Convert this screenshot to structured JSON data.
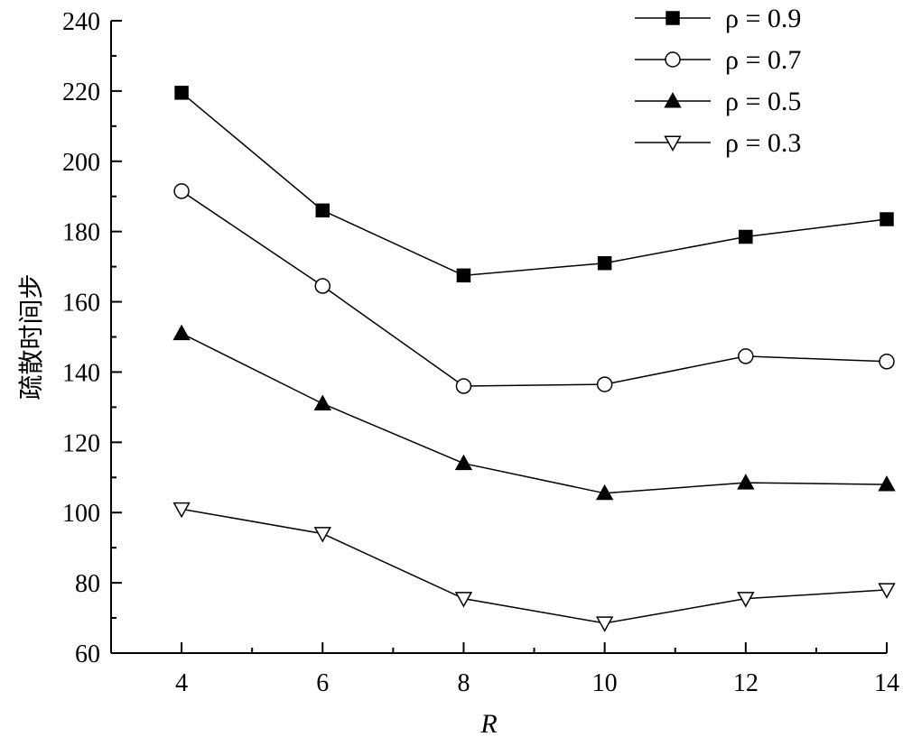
{
  "chart_data": {
    "type": "line",
    "xlabel": "R",
    "ylabel": "疏散时间步",
    "x": [
      4,
      6,
      8,
      10,
      12,
      14
    ],
    "xlim": [
      3,
      14
    ],
    "ylim": [
      60,
      240
    ],
    "xticks": [
      4,
      6,
      8,
      10,
      12,
      14
    ],
    "yticks": [
      60,
      80,
      100,
      120,
      140,
      160,
      180,
      200,
      220,
      240
    ],
    "legend_position": "top-right",
    "grid": false,
    "series": [
      {
        "name": "ρ = 0.9",
        "marker": "square-filled",
        "values": [
          219.5,
          186,
          167.5,
          171,
          178.5,
          183.5
        ]
      },
      {
        "name": "ρ = 0.7",
        "marker": "circle-open",
        "values": [
          191.5,
          164.5,
          136,
          136.5,
          144.5,
          143
        ]
      },
      {
        "name": "ρ = 0.5",
        "marker": "triangle-up-filled",
        "values": [
          151,
          131,
          114,
          105.5,
          108.5,
          108
        ]
      },
      {
        "name": "ρ = 0.3",
        "marker": "triangle-down-open",
        "values": [
          101,
          94,
          75.5,
          68.5,
          75.5,
          78
        ]
      }
    ]
  }
}
